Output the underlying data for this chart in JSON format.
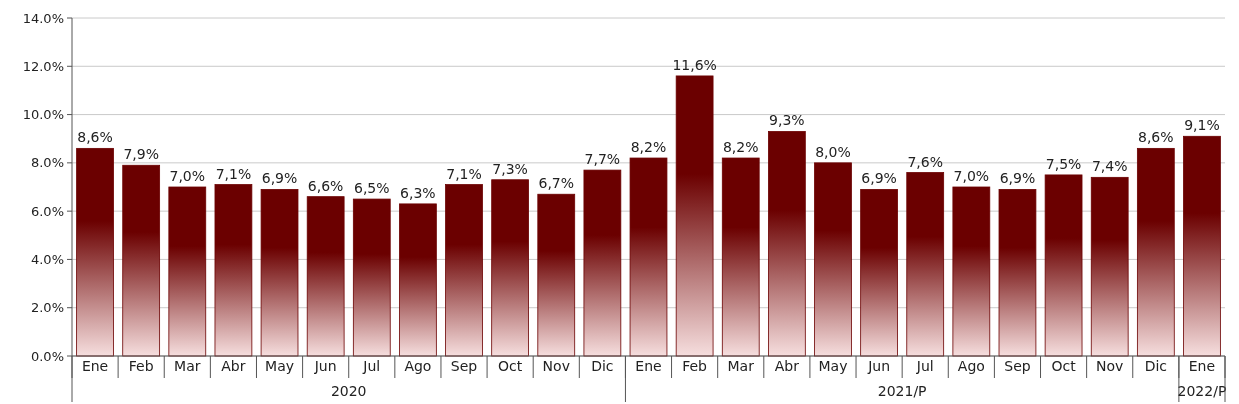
{
  "chart_data": {
    "type": "bar",
    "categories": [
      "Ene",
      "Feb",
      "Mar",
      "Abr",
      "May",
      "Jun",
      "Jul",
      "Ago",
      "Sep",
      "Oct",
      "Nov",
      "Dic",
      "Ene",
      "Feb",
      "Mar",
      "Abr",
      "May",
      "Jun",
      "Jul",
      "Ago",
      "Sep",
      "Oct",
      "Nov",
      "Dic",
      "Ene"
    ],
    "values": [
      8.6,
      7.9,
      7.0,
      7.1,
      6.9,
      6.6,
      6.5,
      6.3,
      7.1,
      7.3,
      6.7,
      7.7,
      8.2,
      11.6,
      8.2,
      9.3,
      8.0,
      6.9,
      7.6,
      7.0,
      6.9,
      7.5,
      7.4,
      8.6,
      9.1
    ],
    "value_labels": [
      "8,6%",
      "7,9%",
      "7,0%",
      "7,1%",
      "6,9%",
      "6,6%",
      "6,5%",
      "6,3%",
      "7,1%",
      "7,3%",
      "6,7%",
      "7,7%",
      "8,2%",
      "11,6%",
      "8,2%",
      "9,3%",
      "8,0%",
      "6,9%",
      "7,6%",
      "7,0%",
      "6,9%",
      "7,5%",
      "7,4%",
      "8,6%",
      "9,1%"
    ],
    "color": "#6b0000",
    "ylim": [
      0,
      14
    ],
    "yticks": [
      {
        "value": 0,
        "label": "0.0%"
      },
      {
        "value": 2,
        "label": "2.0%"
      },
      {
        "value": 4,
        "label": "4.0%"
      },
      {
        "value": 6,
        "label": "6.0%"
      },
      {
        "value": 8,
        "label": "8.0%"
      },
      {
        "value": 10,
        "label": "10.0%"
      },
      {
        "value": 12,
        "label": "12.0%"
      },
      {
        "value": 14,
        "label": "14.0%"
      }
    ],
    "grid": "y",
    "annotations": [
      "2020",
      "2021/P",
      "2022/P"
    ]
  }
}
